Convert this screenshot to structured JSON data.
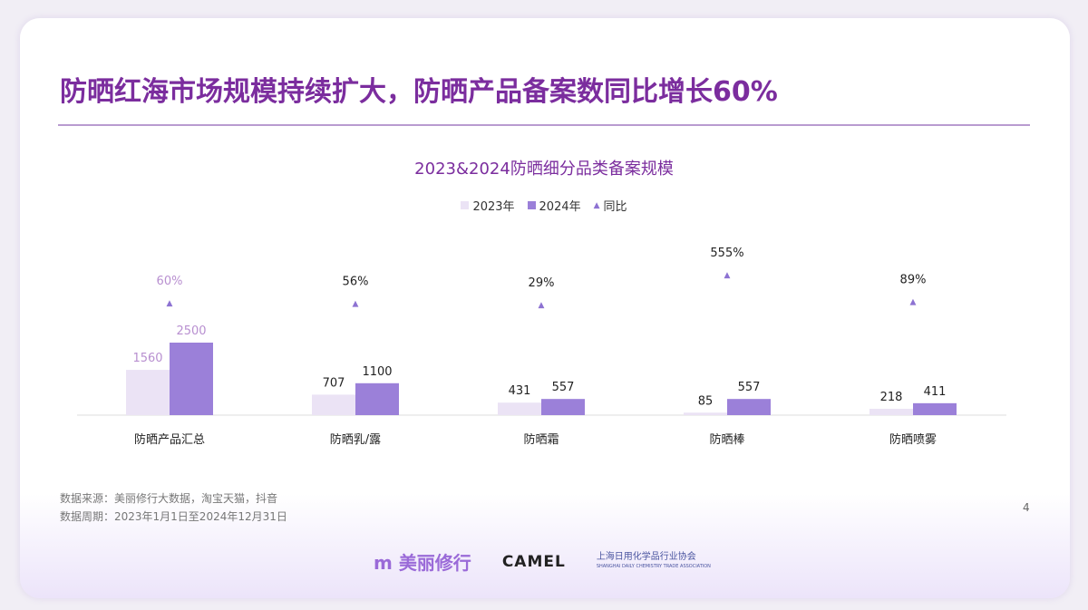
{
  "title": "防晒红海市场规模持续扩大，防晒产品备案数同比增长60%",
  "chart_data": {
    "type": "bar",
    "title": "2023&2024防晒细分品类备案规模",
    "categories": [
      "防晒产品汇总",
      "防晒乳/露",
      "防晒霜",
      "防晒棒",
      "防晒喷雾"
    ],
    "series": [
      {
        "name": "2023年",
        "values": [
          1560,
          707,
          431,
          85,
          218
        ],
        "color": "#ebe3f5"
      },
      {
        "name": "2024年",
        "values": [
          2500,
          1100,
          557,
          557,
          411
        ],
        "color": "#9b80d9"
      },
      {
        "name": "同比",
        "type": "scatter",
        "values": [
          60,
          56,
          29,
          555,
          89
        ],
        "labels": [
          "60%",
          "56%",
          "29%",
          "555%",
          "89%"
        ],
        "color": "#8d72d2"
      }
    ],
    "legend_position": "top-center",
    "grid": false
  },
  "footer": {
    "source": "数据来源：美丽修行大数据，淘宝天猫，抖音",
    "period": "数据周期：2023年1月1日至2024年12月31日",
    "page": "4"
  },
  "logos": {
    "brand1": "美丽修行",
    "brand2": "CAMEL",
    "brand3": "上海日用化学品行业协会",
    "brand3_en": "SHANGHAI DAILY CHEMISTRY TRADE ASSOCIATION"
  }
}
